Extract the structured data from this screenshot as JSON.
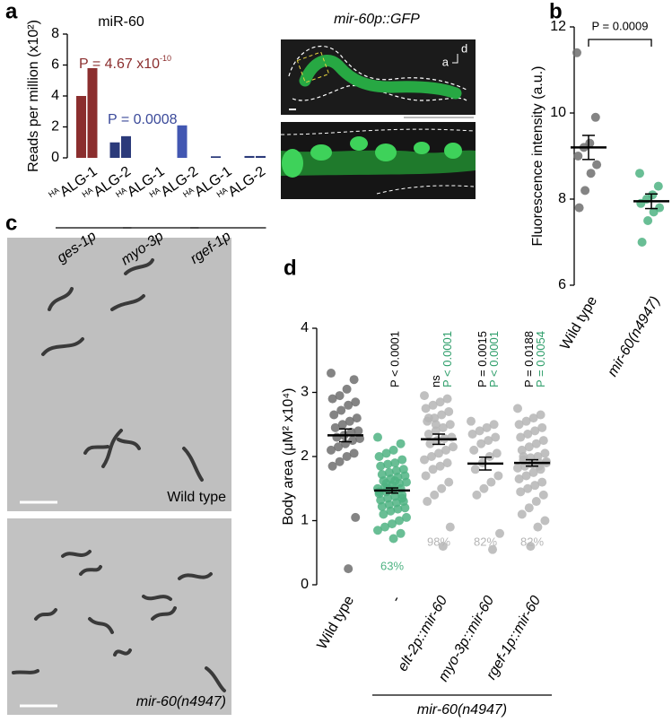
{
  "panel_labels": [
    "a",
    "b",
    "c",
    "d"
  ],
  "micrograph": {
    "title": "mir-60p::GFP",
    "axes": [
      "a",
      "d"
    ]
  },
  "plates": [
    "Wild type",
    "mir-60(n4947)"
  ],
  "chart_data": [
    {
      "type": "bar",
      "title": "miR-60",
      "ylabel": "Reads per million (x10²)",
      "ylim": [
        0,
        8
      ],
      "yticks": [
        0,
        2,
        4,
        6,
        8
      ],
      "groups": [
        {
          "name": "ges-1p",
          "categories": [
            {
              "sup": "HA",
              "text": "ALG-1"
            },
            {
              "sup": "HA",
              "text": "ALG-2"
            }
          ],
          "values": [
            [
              4.0,
              5.8
            ],
            [
              1.0,
              1.4
            ]
          ],
          "colors": [
            "#8b2e2e",
            "#2b3a7a"
          ]
        },
        {
          "name": "myo-3p",
          "categories": [
            {
              "sup": "HA",
              "text": "ALG-1"
            },
            {
              "sup": "HA",
              "text": "ALG-2"
            }
          ],
          "values": [
            [
              0,
              0
            ],
            [
              2.1,
              0
            ]
          ],
          "colors": [
            "#8b2e2e",
            "#4257b2"
          ]
        },
        {
          "name": "rgef-1p",
          "categories": [
            {
              "sup": "HA",
              "text": "ALG-1"
            },
            {
              "sup": "HA",
              "text": "ALG-2"
            }
          ],
          "values": [
            [
              0.1,
              0
            ],
            [
              0.12,
              0.12
            ]
          ],
          "colors": [
            "#2b3a7a",
            "#2b3a7a"
          ]
        }
      ],
      "annotations": [
        {
          "text": "P = 4.67 x10",
          "sup": "-10",
          "color": "#8b2e2e"
        },
        {
          "text": "P = 0.0008",
          "color": "#3b4a9a"
        }
      ]
    },
    {
      "type": "strip",
      "ylabel": "Fluorescence intensity (a.u.)",
      "categories": [
        "Wild type",
        "mir-60(n4947)"
      ],
      "colors": [
        "#6e6e6e",
        "#4fb383"
      ],
      "values": [
        [
          11.4,
          9.9,
          9.3,
          9.2,
          9.0,
          8.8,
          8.6,
          8.2,
          7.8
        ],
        [
          8.6,
          8.3,
          8.1,
          8.0,
          7.9,
          7.8,
          7.7,
          7.5,
          7.0
        ]
      ],
      "means": [
        9.2,
        7.95
      ],
      "errors": [
        0.28,
        0.17
      ],
      "ylim": [
        6,
        12
      ],
      "yticks": [
        6,
        8,
        10,
        12
      ],
      "comparison": "P = 0.0009"
    },
    {
      "type": "strip",
      "ylabel": "Body area (μM² x10⁴)",
      "categories": [
        "Wild type",
        "-",
        "elt-2p::mir-60",
        "myo-3p::mir-60",
        "rgef-1p::mir-60"
      ],
      "colors": [
        "#6e6e6e",
        "#4fb383",
        "#b5b5b5",
        "#b5b5b5",
        "#b5b5b5"
      ],
      "values": [
        [
          3.3,
          3.2,
          3.05,
          2.95,
          2.9,
          2.85,
          2.8,
          2.72,
          2.65,
          2.6,
          2.55,
          2.5,
          2.45,
          2.4,
          2.38,
          2.33,
          2.3,
          2.28,
          2.25,
          2.2,
          2.15,
          2.1,
          2.05,
          2.0,
          1.92,
          1.85,
          1.05,
          0.25
        ],
        [
          2.3,
          2.2,
          2.1,
          2.05,
          2.0,
          1.95,
          1.9,
          1.88,
          1.85,
          1.8,
          1.78,
          1.75,
          1.72,
          1.7,
          1.68,
          1.65,
          1.62,
          1.6,
          1.58,
          1.55,
          1.52,
          1.5,
          1.5,
          1.48,
          1.45,
          1.42,
          1.4,
          1.38,
          1.35,
          1.32,
          1.3,
          1.28,
          1.25,
          1.22,
          1.2,
          1.18,
          1.15,
          1.1,
          1.05,
          1.0,
          0.95,
          0.9,
          0.85,
          0.8,
          0.72,
          1.58,
          1.45,
          1.35,
          1.62,
          1.5
        ],
        [
          2.95,
          2.9,
          2.85,
          2.8,
          2.75,
          2.7,
          2.65,
          2.6,
          2.55,
          2.5,
          2.45,
          2.4,
          2.35,
          2.3,
          2.28,
          2.25,
          2.2,
          2.15,
          2.1,
          2.05,
          2.0,
          1.95,
          1.9,
          1.85,
          1.8,
          1.7,
          1.6,
          1.5,
          1.4,
          1.3,
          0.9,
          0.6,
          2.5,
          2.6
        ],
        [
          2.55,
          2.5,
          2.45,
          2.4,
          2.35,
          2.3,
          2.25,
          2.2,
          2.1,
          2.05,
          2.0,
          1.9,
          1.8,
          1.7,
          1.6,
          1.5,
          1.4,
          0.8,
          0.55
        ],
        [
          2.75,
          2.65,
          2.6,
          2.55,
          2.5,
          2.45,
          2.4,
          2.35,
          2.3,
          2.25,
          2.2,
          2.15,
          2.1,
          2.05,
          2.0,
          1.98,
          1.95,
          1.92,
          1.9,
          1.88,
          1.85,
          1.82,
          1.8,
          1.75,
          1.7,
          1.65,
          1.6,
          1.55,
          1.5,
          1.45,
          1.4,
          1.3,
          1.2,
          1.1,
          1.0,
          0.9,
          0.6,
          2.0,
          1.9,
          1.85
        ]
      ],
      "means": [
        2.33,
        1.47,
        2.27,
        1.89,
        1.9
      ],
      "errors": [
        0.1,
        0.04,
        0.08,
        0.1,
        0.05
      ],
      "ylim": [
        0,
        4
      ],
      "yticks": [
        0,
        1,
        2,
        3,
        4
      ],
      "percent_labels": [
        null,
        "63%",
        "98%",
        "82%",
        "82%"
      ],
      "p_labels": [
        [],
        [
          {
            "text": "P < 0.0001",
            "color": "#000000"
          }
        ],
        [
          {
            "text": "ns",
            "color": "#000000"
          },
          {
            "text": "P < 0.0001",
            "color": "#2e9e6a"
          }
        ],
        [
          {
            "text": "P = 0.0015",
            "color": "#000000"
          },
          {
            "text": "P < 0.0001",
            "color": "#2e9e6a"
          }
        ],
        [
          {
            "text": "P = 0.0188",
            "color": "#000000"
          },
          {
            "text": "P = 0.0054",
            "color": "#2e9e6a"
          }
        ]
      ],
      "group_label": "mir-60(n4947)"
    }
  ]
}
